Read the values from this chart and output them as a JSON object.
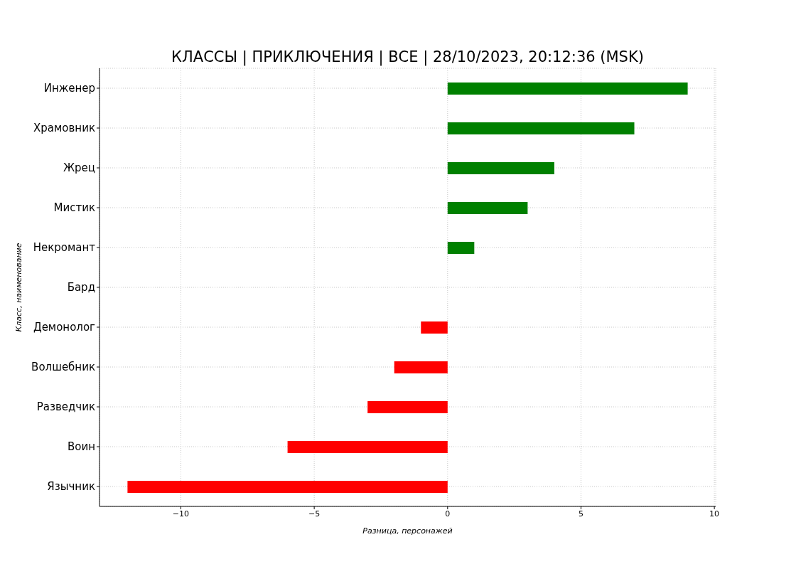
{
  "chart_data": {
    "type": "bar",
    "orientation": "horizontal",
    "title": "КЛАССЫ | ПРИКЛЮЧЕНИЯ | ВСЕ | 28/10/2023, 20:12:36 (MSK)",
    "xlabel": "Разница, персонажей",
    "ylabel": "Класс, наименование",
    "categories": [
      "Инженер",
      "Храмовник",
      "Жрец",
      "Мистик",
      "Некромант",
      "Бард",
      "Демонолог",
      "Волшебник",
      "Разведчик",
      "Воин",
      "Язычник"
    ],
    "values": [
      9,
      7,
      4,
      3,
      1,
      0,
      -1,
      -2,
      -3,
      -6,
      -12
    ],
    "colors": [
      "#008000",
      "#008000",
      "#008000",
      "#008000",
      "#008000",
      "#ff0000",
      "#ff0000",
      "#ff0000",
      "#ff0000",
      "#ff0000",
      "#ff0000"
    ],
    "xlim": [
      -13.05,
      10.05
    ],
    "xticks": [
      {
        "value": -10,
        "label": "−10"
      },
      {
        "value": -5,
        "label": "−5"
      },
      0,
      5,
      10
    ],
    "grid": true
  }
}
